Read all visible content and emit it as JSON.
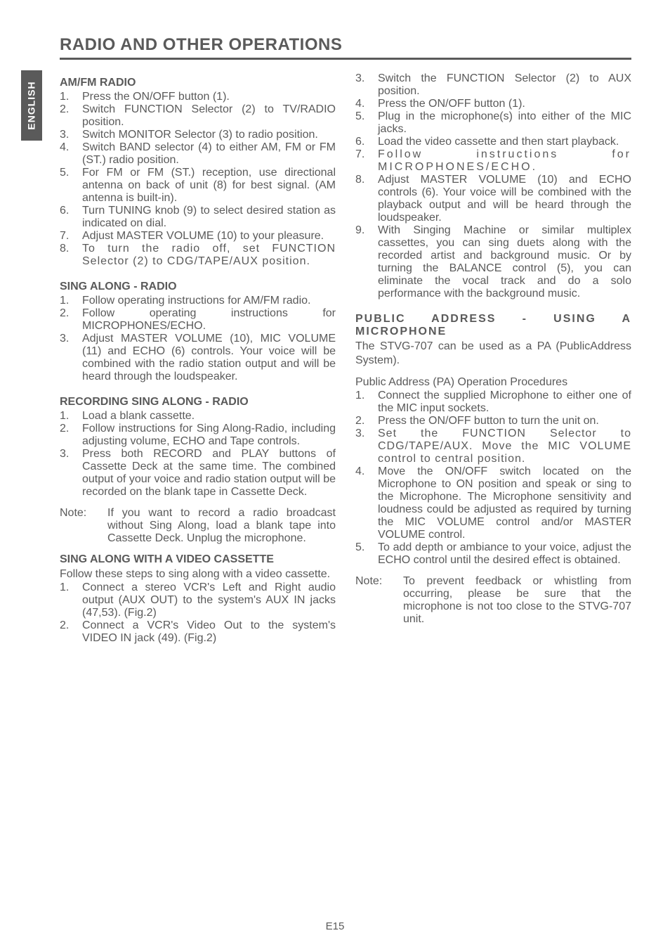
{
  "lang_tab": "ENGLISH",
  "title": "RADIO AND OTHER OPERATIONS",
  "page_number": "E15",
  "colors": {
    "text": "#5a5a5a",
    "tab_bg": "#5a5a5a",
    "tab_text": "#ffffff",
    "background": "#ffffff",
    "rule": "#5a5a5a"
  },
  "fonts": {
    "body_family": "Arial",
    "title_size_pt": 18,
    "heading_size_pt": 12,
    "body_size_pt": 12
  },
  "left": {
    "s1_heading": "AM/FM RADIO",
    "s1_items": [
      "Press the ON/OFF button (1).",
      "Switch FUNCTION Selector (2) to TV/RADIO position.",
      "Switch MONITOR Selector (3) to radio position.",
      "Switch BAND selector (4) to either AM, FM or FM (ST.) radio position.",
      "For FM or FM (ST.) reception, use directional antenna on back of unit (8) for best signal. (AM antenna is built-in).",
      "Turn TUNING knob (9) to select desired station as indicated on dial.",
      "Adjust MASTER VOLUME (10) to your pleasure.",
      "To turn the radio off, set FUNCTION Selector (2) to CDG/TAPE/AUX position."
    ],
    "s2_heading": "SING ALONG - RADIO",
    "s2_items": [
      "Follow operating instructions for AM/FM radio.",
      "Follow operating instructions for MICROPHONES/ECHO.",
      "Adjust MASTER VOLUME (10), MIC VOLUME (11) and ECHO (6) controls. Your voice will be combined with the radio station output and will be heard through the loudspeaker."
    ],
    "s3_heading": "RECORDING SING ALONG - RADIO",
    "s3_items": [
      "Load a blank cassette.",
      "Follow instructions for Sing Along-Radio, including adjusting volume, ECHO and Tape controls.",
      "Press both RECORD and PLAY buttons of Cassette Deck at the same time. The combined output of your voice and radio station output will be recorded on the blank tape in Cassette Deck."
    ],
    "s3_note_label": "Note:",
    "s3_note_body": "If you want to record a radio broadcast without Sing Along, load a blank tape into Cassette Deck. Unplug the microphone.",
    "s4_heading": "SING ALONG WITH A VIDEO CASSETTE",
    "s4_intro": "Follow these steps to sing along with a video cassette.",
    "s4_items": [
      "Connect a stereo VCR's Left and Right audio output (AUX OUT) to the system's AUX IN jacks (47,53). (Fig.2)",
      "Connect a VCR's Video Out to the system's VIDEO IN jack (49). (Fig.2)"
    ]
  },
  "right": {
    "s4_items_cont": [
      {
        "n": "3.",
        "t": "Switch the FUNCTION Selector (2) to AUX position."
      },
      {
        "n": "4.",
        "t": "Press the ON/OFF button (1)."
      },
      {
        "n": "5.",
        "t": "Plug in the microphone(s) into either of the MIC jacks."
      },
      {
        "n": "6.",
        "t": "Load the video cassette and then start playback."
      },
      {
        "n": "7.",
        "t": "Follow instructions for MICROPHONES/ECHO."
      },
      {
        "n": "8.",
        "t": "Adjust MASTER VOLUME (10) and ECHO controls (6). Your voice will be combined with the playback output and will be heard through the loudspeaker."
      },
      {
        "n": "9.",
        "t": "With Singing Machine or similar multiplex cassettes, you can sing duets along with the recorded artist and background music. Or by turning the BALANCE control (5), you can eliminate the vocal track and do a solo performance with the background music."
      }
    ],
    "s5_heading": "PUBLIC ADDRESS - USING A MICROPHONE",
    "s5_intro1": "The STVG-707 can be used as a PA (PublicAddress System).",
    "s5_intro2": "Public Address (PA) Operation Procedures",
    "s5_items": [
      "Connect the supplied Microphone to either one of the MIC input sockets.",
      "Press the ON/OFF button to turn the unit on.",
      "Set the FUNCTION Selector to CDG/TAPE/AUX. Move the MIC VOLUME control to central position.",
      "Move the ON/OFF switch located on the Microphone to ON position and speak or sing to the Microphone. The Microphone sensitivity and loudness could be adjusted as required by turning the MIC VOLUME control and/or MASTER VOLUME control.",
      "To add depth or ambiance to your voice, adjust the ECHO control until the desired effect is obtained."
    ],
    "s5_note_label": "Note:",
    "s5_note_body": "To prevent feedback or whistling from occurring, please be sure that the microphone is not too close to the STVG-707 unit."
  }
}
